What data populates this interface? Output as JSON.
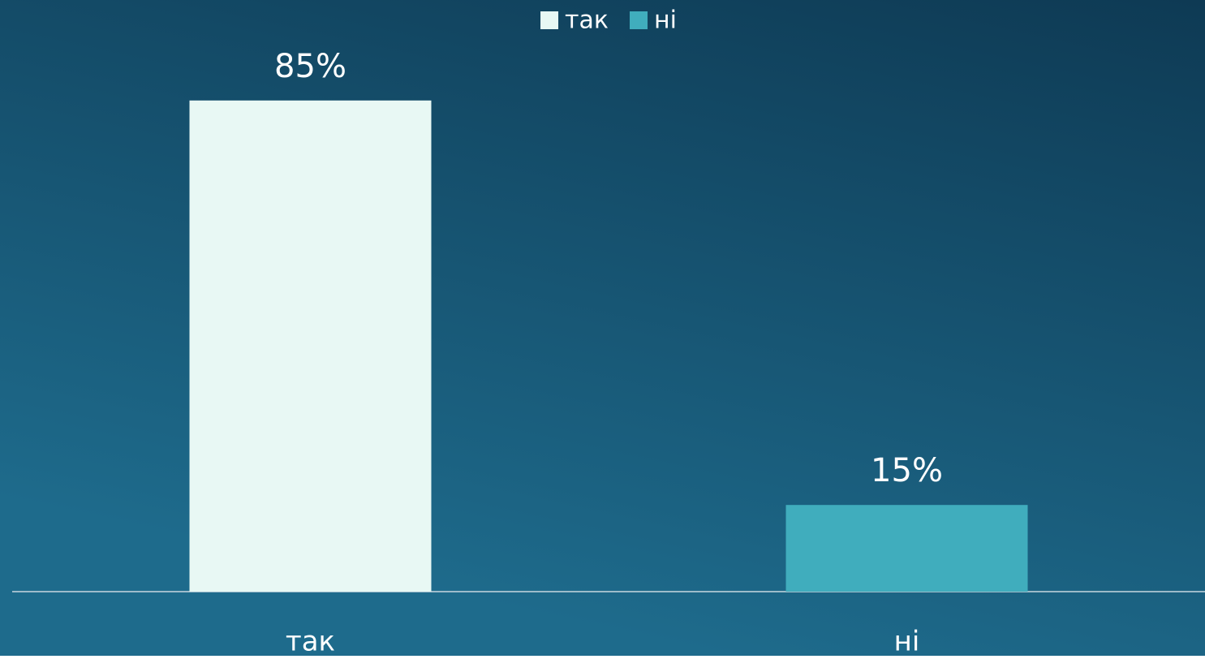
{
  "chart_data": {
    "type": "bar",
    "categories": [
      "так",
      "ні"
    ],
    "series": [
      {
        "name": "так",
        "color": "#e8f8f4",
        "values": [
          85,
          null
        ],
        "value_labels": [
          "85%",
          null
        ]
      },
      {
        "name": "ні",
        "color": "#40adbd",
        "values": [
          null,
          15
        ],
        "value_labels": [
          null,
          "15%"
        ]
      }
    ],
    "ylim": [
      0,
      100
    ],
    "legend": "top"
  }
}
